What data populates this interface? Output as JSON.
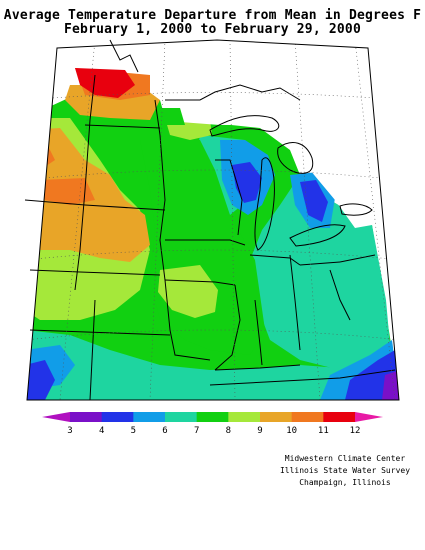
{
  "title_line1": "Average Temperature Departure from Mean in Degrees F",
  "title_line2": "February 1, 2000 to February 29, 2000",
  "legend": {
    "values": [
      "3",
      "4",
      "5",
      "6",
      "7",
      "8",
      "9",
      "10",
      "11",
      "12"
    ],
    "colors": [
      "#7a10c8",
      "#2233e8",
      "#119de8",
      "#1ed5a0",
      "#11d011",
      "#a5e83a",
      "#e8a528",
      "#f07820",
      "#e8000e",
      "#e81aa5"
    ],
    "under_color": "#b010c0",
    "over_color": "#e81aa5"
  },
  "credits": {
    "line1": "Midwestern Climate Center",
    "line2": "Illinois State Water Survey",
    "line3": "Champaign, Illinois"
  },
  "colors": {
    "purple": "#7a10c8",
    "blue": "#2233e8",
    "cyan": "#119de8",
    "teal": "#1ed5a0",
    "green": "#11d011",
    "lightgreen": "#a5e83a",
    "orange": "#e8a528",
    "darkorange": "#f07820",
    "red": "#e8000e"
  }
}
